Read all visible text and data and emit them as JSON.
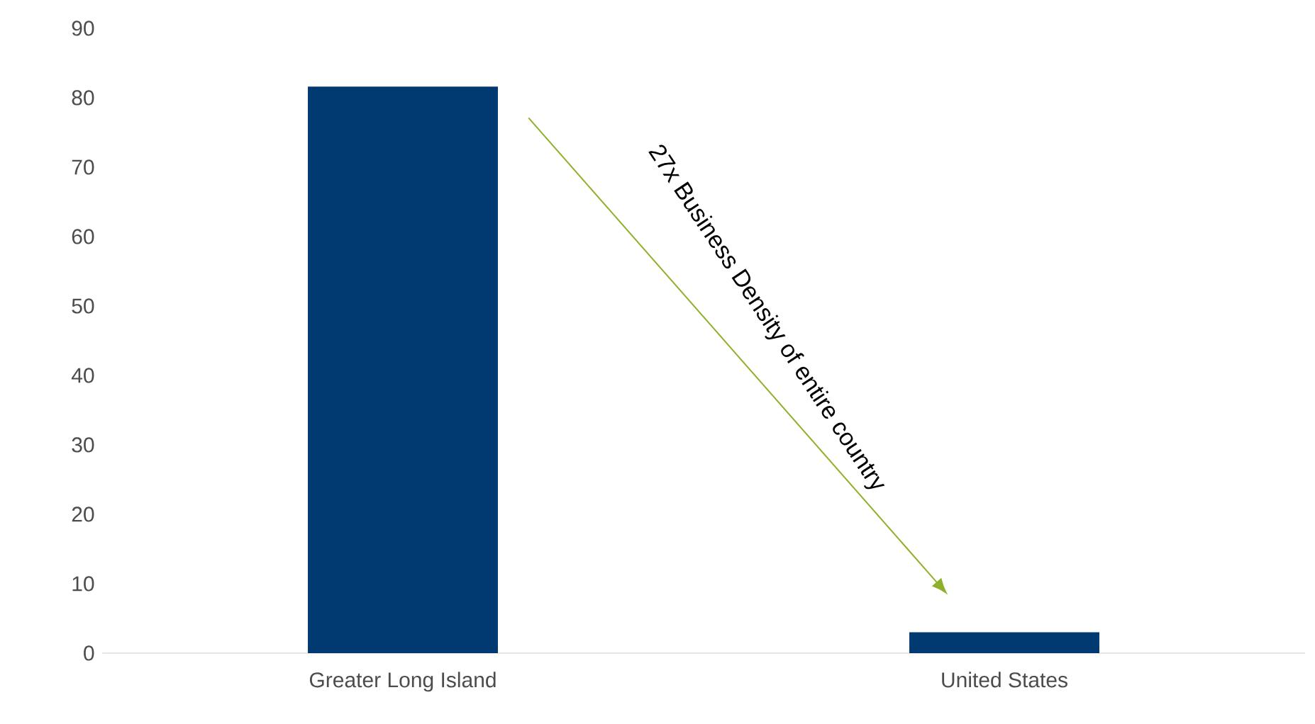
{
  "chart_data": {
    "type": "bar",
    "categories": [
      "Greater Long Island",
      "United States"
    ],
    "values": [
      81.6,
      3.0
    ],
    "color": "#003a70",
    "ylim": [
      0,
      90
    ],
    "yticks": [
      0,
      10,
      20,
      30,
      40,
      50,
      60,
      70,
      80,
      90
    ],
    "annotations": [
      "27x Business Density of entire country"
    ]
  }
}
